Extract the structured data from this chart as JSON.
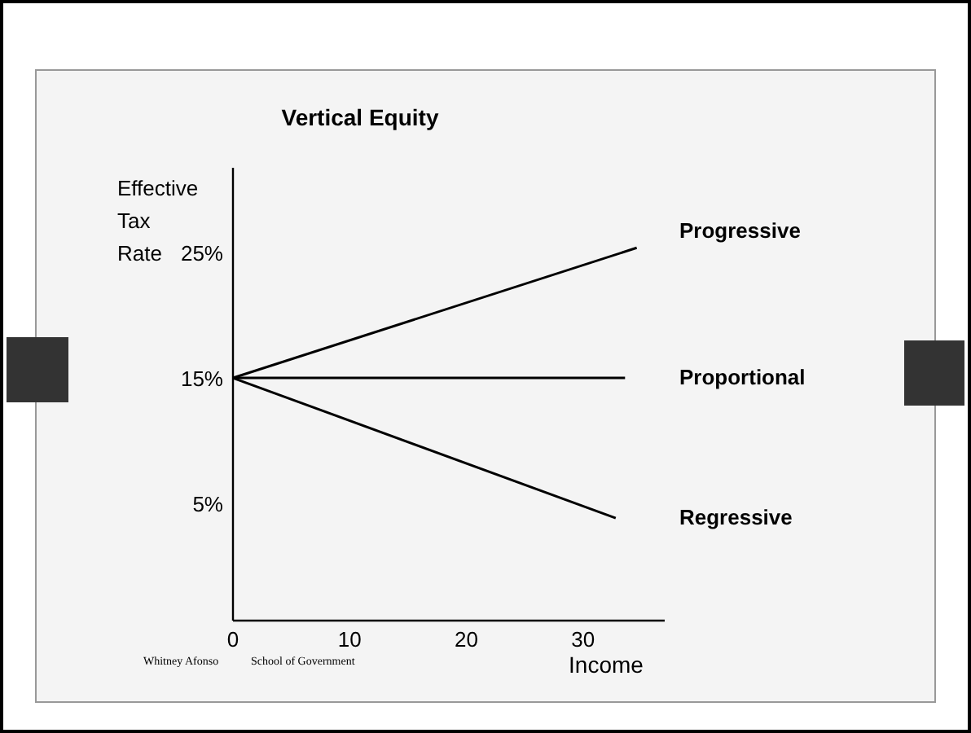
{
  "chart_data": {
    "type": "line",
    "title": "Vertical Equity",
    "xlabel": "Income",
    "ylabel": "Effective Tax Rate",
    "xlim": [
      0,
      37
    ],
    "xticks": [
      0,
      10,
      20,
      30
    ],
    "ylim": [
      -4.4,
      31.8
    ],
    "yticks": [
      {
        "value": 5,
        "label": "5%"
      },
      {
        "value": 15,
        "label": "15%"
      },
      {
        "value": 25,
        "label": "25%"
      }
    ],
    "marker": "none",
    "line_style": "solid",
    "series": [
      {
        "name": "Progressive",
        "color": "#000000",
        "x": [
          0,
          34.6
        ],
        "values": [
          15,
          25.4
        ]
      },
      {
        "name": "Proportional",
        "color": "#000000",
        "x": [
          0,
          33.6
        ],
        "values": [
          15,
          15
        ]
      },
      {
        "name": "Regressive",
        "color": "#000000",
        "x": [
          0,
          32.8
        ],
        "values": [
          15,
          3.8
        ]
      }
    ],
    "annotations": [
      "Whitney Afonso",
      "School of Government"
    ]
  }
}
